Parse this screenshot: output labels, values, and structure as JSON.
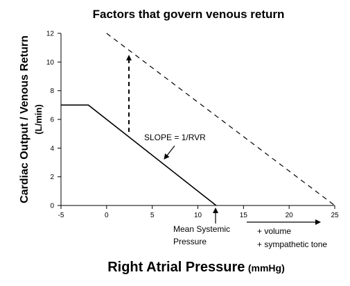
{
  "chart_data": {
    "type": "line",
    "title": "Factors that govern venous return",
    "x_label": "Right Atrial Pressure",
    "x_unit": "(mmHg)",
    "y_label": "Cardiac Output / Venous Return",
    "y_unit": "(L/min)",
    "xlim": [
      -5,
      25
    ],
    "xticks": [
      -5,
      0,
      5,
      10,
      15,
      20,
      25
    ],
    "ylim": [
      0,
      12
    ],
    "yticks": [
      0,
      2,
      4,
      6,
      8,
      10,
      12
    ],
    "series": [
      {
        "color": "#000000",
        "dashed": false,
        "x": [
          -5,
          -2,
          12
        ],
        "values": [
          7,
          7,
          0
        ]
      },
      {
        "color": "#000000",
        "dashed": true,
        "x": [
          0,
          25
        ],
        "values": [
          12,
          0
        ]
      }
    ],
    "annotations": {
      "slope": "SLOPE = 1/RVR",
      "mean_systemic": [
        "Mean Systemic",
        "Pressure"
      ],
      "shift": [
        "+ volume",
        "+ sympathetic tone"
      ]
    }
  }
}
